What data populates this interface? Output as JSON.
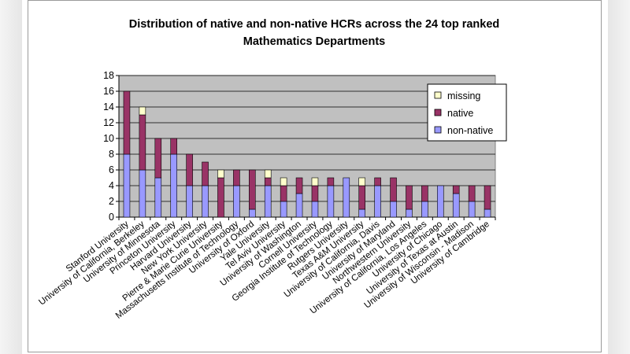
{
  "chart_data": {
    "type": "bar",
    "stacked": true,
    "title_lines": [
      "Distribution of native and non-native HCRs across the 24 top ranked",
      "Mathematics Departments"
    ],
    "xlabel": "",
    "ylabel": "",
    "ylim": [
      0,
      18
    ],
    "yticks": [
      0,
      2,
      4,
      6,
      8,
      10,
      12,
      14,
      16,
      18
    ],
    "ytick_labels": [
      "0",
      "2",
      "4",
      "6",
      "8",
      "10",
      "12",
      "14",
      "16",
      "18"
    ],
    "grid": true,
    "legend_position": "top-right",
    "categories": [
      "Stanford University",
      "University of California, Berkeley",
      "University of Minnesota",
      "Princeton University",
      "Harvard University",
      "New York University",
      "Pierre & Marie Curie University",
      "Massachusetts Institute of Technology",
      "University of Oxford",
      "Yale University",
      "Tel Aviv University",
      "University of Washington",
      "Cornell University",
      "Georgia Institute of Technology",
      "Rutgers University",
      "Texas A&M University",
      "University of California, Davis",
      "University of Maryland",
      "Northwestern University",
      "University of California, Los Angeles",
      "University of Chicago",
      "University of Texas at Austin",
      "University of Wisconsin - Madison",
      "University of Cambridge"
    ],
    "series": [
      {
        "name": "non-native",
        "color": "#9999ff",
        "values": [
          8,
          6,
          5,
          8,
          4,
          4,
          0,
          4,
          1,
          4,
          2,
          3,
          2,
          4,
          5,
          1,
          4,
          2,
          1,
          2,
          4,
          3,
          2,
          1
        ]
      },
      {
        "name": "native",
        "color": "#993366",
        "values": [
          8,
          7,
          5,
          2,
          4,
          3,
          5,
          2,
          5,
          1,
          2,
          2,
          2,
          1,
          0,
          3,
          1,
          3,
          3,
          2,
          0,
          1,
          2,
          3
        ]
      },
      {
        "name": "missing",
        "color": "#ffffcc",
        "values": [
          0,
          1,
          0,
          0,
          0,
          0,
          1,
          0,
          0,
          1,
          1,
          0,
          1,
          0,
          0,
          1,
          0,
          0,
          0,
          0,
          0,
          0,
          0,
          0
        ]
      }
    ],
    "legend_order": [
      "missing",
      "native",
      "non-native"
    ]
  },
  "style": {
    "plot_background": "#c0c0c0",
    "grid_color": "#000000",
    "bar_outline": "#000000"
  }
}
